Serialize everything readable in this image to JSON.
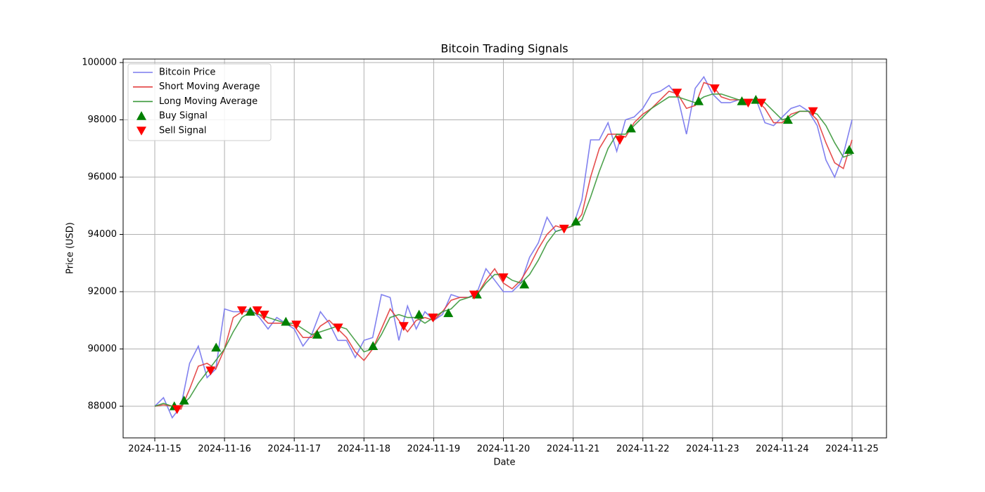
{
  "chart_data": {
    "type": "line",
    "title": "Bitcoin Trading Signals",
    "x_label": "Date",
    "y_label": "Price (USD)",
    "grid": true,
    "legend": "upper left",
    "xlim": [
      -0.454,
      10.494
    ],
    "ylim": [
      86896,
      100123
    ],
    "xticks": [
      {
        "value": 0,
        "label": "2024-11-15"
      },
      {
        "value": 1,
        "label": "2024-11-16"
      },
      {
        "value": 2,
        "label": "2024-11-17"
      },
      {
        "value": 3,
        "label": "2024-11-18"
      },
      {
        "value": 4,
        "label": "2024-11-19"
      },
      {
        "value": 5,
        "label": "2024-11-20"
      },
      {
        "value": 6,
        "label": "2024-11-21"
      },
      {
        "value": 7,
        "label": "2024-11-22"
      },
      {
        "value": 8,
        "label": "2024-11-23"
      },
      {
        "value": 9,
        "label": "2024-11-24"
      },
      {
        "value": 10,
        "label": "2024-11-25"
      }
    ],
    "yticks": [
      88000,
      90000,
      92000,
      94000,
      96000,
      98000,
      100000
    ],
    "x": [
      0,
      0.125,
      0.25,
      0.375,
      0.5,
      0.625,
      0.75,
      0.875,
      1,
      1.125,
      1.25,
      1.375,
      1.5,
      1.625,
      1.75,
      1.875,
      2,
      2.125,
      2.25,
      2.375,
      2.5,
      2.625,
      2.75,
      2.875,
      3,
      3.125,
      3.25,
      3.375,
      3.5,
      3.625,
      3.75,
      3.875,
      4,
      4.125,
      4.25,
      4.375,
      4.5,
      4.625,
      4.75,
      4.875,
      5,
      5.125,
      5.25,
      5.375,
      5.5,
      5.625,
      5.75,
      5.875,
      6,
      6.125,
      6.25,
      6.375,
      6.5,
      6.625,
      6.75,
      6.875,
      7,
      7.125,
      7.25,
      7.375,
      7.5,
      7.625,
      7.75,
      7.875,
      8,
      8.125,
      8.25,
      8.375,
      8.5,
      8.625,
      8.75,
      8.875,
      9,
      9.125,
      9.25,
      9.375,
      9.5,
      9.625,
      9.75,
      9.875,
      10
    ],
    "series": [
      {
        "name": "Bitcoin Price",
        "color": "#7a7aee",
        "marker": "line",
        "values": [
          88000,
          88300,
          87600,
          88000,
          89500,
          90100,
          89000,
          89300,
          91400,
          91300,
          91300,
          91400,
          91100,
          90700,
          91100,
          90900,
          90700,
          90100,
          90500,
          91300,
          90900,
          90300,
          90300,
          89700,
          90300,
          90400,
          91900,
          91800,
          90300,
          91500,
          90700,
          91300,
          91000,
          91200,
          91900,
          91800,
          91800,
          92000,
          92800,
          92400,
          92000,
          92000,
          92300,
          93200,
          93700,
          94600,
          94100,
          94200,
          94300,
          95200,
          97300,
          97300,
          97900,
          96900,
          98000,
          98100,
          98400,
          98900,
          99000,
          99200,
          98800,
          97500,
          99100,
          99500,
          98900,
          98600,
          98600,
          98700,
          98700,
          98700,
          97900,
          97800,
          98100,
          98400,
          98500,
          98300,
          97800,
          96600,
          96000,
          96800,
          98000
        ]
      },
      {
        "name": "Short Moving Average",
        "color": "#e23b3b",
        "marker": "line",
        "values": [
          88000,
          88050,
          88000,
          87900,
          88600,
          89400,
          89500,
          89300,
          90000,
          91100,
          91300,
          91300,
          91200,
          90900,
          90900,
          90900,
          90800,
          90400,
          90400,
          90800,
          91000,
          90700,
          90400,
          89900,
          89600,
          90000,
          90700,
          91400,
          91000,
          90600,
          91000,
          91100,
          91000,
          91300,
          91700,
          91800,
          91800,
          91900,
          92400,
          92800,
          92300,
          92100,
          92400,
          92900,
          93500,
          94000,
          94300,
          94200,
          94300,
          94700,
          96000,
          97000,
          97500,
          97500,
          97400,
          97900,
          98200,
          98400,
          98700,
          99000,
          98900,
          98400,
          98500,
          99300,
          99200,
          98800,
          98700,
          98700,
          98700,
          98700,
          98400,
          97900,
          97900,
          98200,
          98300,
          98300,
          98000,
          97200,
          96500,
          96300,
          97300
        ]
      },
      {
        "name": "Long Moving Average",
        "color": "#3a983a",
        "marker": "line",
        "values": [
          88000,
          88100,
          88000,
          88000,
          88300,
          88800,
          89200,
          89600,
          90000,
          90600,
          91100,
          91300,
          91200,
          91100,
          91000,
          90900,
          90900,
          90700,
          90500,
          90600,
          90700,
          90800,
          90700,
          90300,
          89900,
          90000,
          90500,
          91100,
          91200,
          91100,
          91100,
          90900,
          91100,
          91300,
          91400,
          91700,
          91800,
          91900,
          92300,
          92600,
          92600,
          92400,
          92300,
          92600,
          93100,
          93700,
          94100,
          94200,
          94300,
          94500,
          95300,
          96200,
          97000,
          97500,
          97500,
          97800,
          98100,
          98400,
          98600,
          98800,
          98800,
          98700,
          98600,
          98800,
          98900,
          98900,
          98800,
          98700,
          98700,
          98700,
          98600,
          98300,
          98000,
          98100,
          98300,
          98300,
          98200,
          97800,
          97200,
          96700,
          96800
        ]
      },
      {
        "name": "Buy Signal",
        "color": "#008000",
        "marker": "triangle-up",
        "x": [
          0.28,
          0.42,
          0.88,
          1.37,
          1.88,
          2.33,
          3.13,
          3.79,
          4.21,
          4.62,
          5.3,
          6.04,
          6.83,
          7.8,
          8.42,
          8.62,
          9.08,
          9.96
        ],
        "values": [
          88000,
          88200,
          90050,
          91300,
          90950,
          90500,
          90100,
          91200,
          91250,
          91900,
          92250,
          94450,
          97700,
          98650,
          98650,
          98700,
          98000,
          96950
        ]
      },
      {
        "name": "Sell Signal",
        "color": "#ff0000",
        "marker": "triangle-down",
        "x": [
          0.32,
          0.8,
          1.25,
          1.47,
          1.57,
          2.03,
          2.63,
          3.57,
          3.99,
          4.58,
          5,
          5.87,
          6.67,
          7.49,
          8.03,
          8.51,
          8.7,
          9.44
        ],
        "values": [
          87900,
          89250,
          91350,
          91350,
          91200,
          90850,
          90750,
          90800,
          91100,
          91900,
          92500,
          94200,
          97300,
          98950,
          99100,
          98600,
          98600,
          98300
        ]
      }
    ]
  }
}
